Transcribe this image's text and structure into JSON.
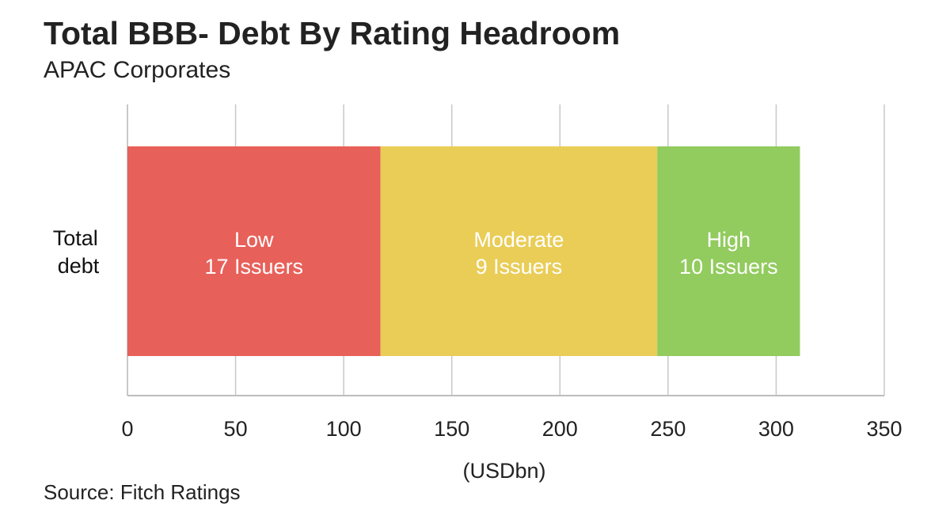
{
  "chart_data": {
    "type": "bar",
    "orientation": "horizontal",
    "stacked": true,
    "title": "Total BBB- Debt By Rating Headroom",
    "subtitle": "APAC Corporates",
    "source": "Source: Fitch Ratings",
    "xlabel": "(USDbn)",
    "ylabel": "",
    "xlim": [
      0,
      350
    ],
    "xticks": [
      "0",
      "50",
      "100",
      "150",
      "200",
      "250",
      "300",
      "350"
    ],
    "grid": true,
    "categories": [
      "Total debt"
    ],
    "category_lines": [
      "Total",
      "debt"
    ],
    "series": [
      {
        "name": "Low",
        "issuers": "17 Issuers",
        "values": [
          117
        ],
        "color": "#e8605a"
      },
      {
        "name": "Moderate",
        "issuers": "9 Issuers",
        "values": [
          128
        ],
        "color": "#e9cd57"
      },
      {
        "name": "High",
        "issuers": "10 Issuers",
        "values": [
          66
        ],
        "color": "#92cb5e"
      }
    ]
  }
}
